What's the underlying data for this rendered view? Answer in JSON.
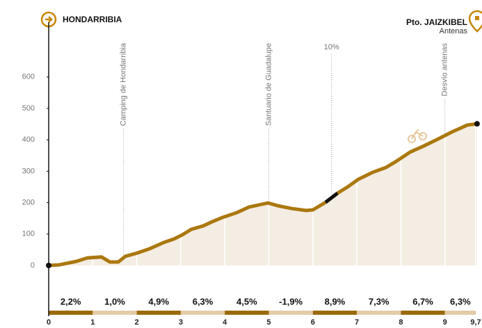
{
  "chart_data": {
    "type": "area",
    "start_label": "HONDARRIBIA",
    "end_label": "Pto. JAIZKIBEL",
    "end_sublabel": "Antenas",
    "x": [
      0,
      0.24,
      0.63,
      0.88,
      1.2,
      1.39,
      1.58,
      1.74,
      2.02,
      2.29,
      2.61,
      2.84,
      3.03,
      3.24,
      3.51,
      3.71,
      3.95,
      4.27,
      4.55,
      4.98,
      5.21,
      5.53,
      5.85,
      6.0,
      6.29,
      6.56,
      6.79,
      7.03,
      7.35,
      7.66,
      7.9,
      8.21,
      8.53,
      8.85,
      9.16,
      9.51,
      9.73
    ],
    "series": [
      {
        "color": "#ab780f",
        "values": [
          0,
          2,
          13,
          24,
          27,
          11,
          11,
          29,
          40,
          53,
          73,
          84,
          97,
          115,
          126,
          139,
          153,
          168,
          186,
          199,
          190,
          181,
          175,
          177,
          201,
          230,
          250,
          274,
          296,
          312,
          332,
          361,
          381,
          403,
          425,
          447,
          451
        ]
      }
    ],
    "steep_section": {
      "xrange": [
        6.29,
        6.56
      ],
      "label": "10%",
      "color": "#111111"
    },
    "landmarks": [
      {
        "label": "Camping de Hondarribia",
        "x": 1.7
      },
      {
        "label": "Santuario de Guadalupe",
        "x": 5.0
      },
      {
        "label": "Desvío antenas",
        "x": 9.0
      }
    ],
    "slopes": {
      "values": [
        2.2,
        1.0,
        4.9,
        6.3,
        4.5,
        -1.9,
        8.9,
        7.3,
        6.7,
        6.3
      ],
      "value_labels": [
        "2,2%",
        "1,0%",
        "4,9%",
        "6,3%",
        "4,5%",
        "-1,9%",
        "8,9%",
        "7,3%",
        "6,7%",
        "6,3%"
      ],
      "colors": [
        "#9a6a0c",
        "#e3cba8"
      ]
    },
    "xlim": [
      0,
      9.7
    ],
    "xticks": [
      0,
      1,
      2,
      3,
      4,
      5,
      6,
      7,
      8,
      9,
      {
        "value": 9.7,
        "label": "9,7"
      }
    ],
    "ylim": [
      0,
      750
    ],
    "yticks": [
      0,
      100,
      200,
      300,
      400,
      500,
      600
    ],
    "fill_color": "#f4ede3"
  }
}
